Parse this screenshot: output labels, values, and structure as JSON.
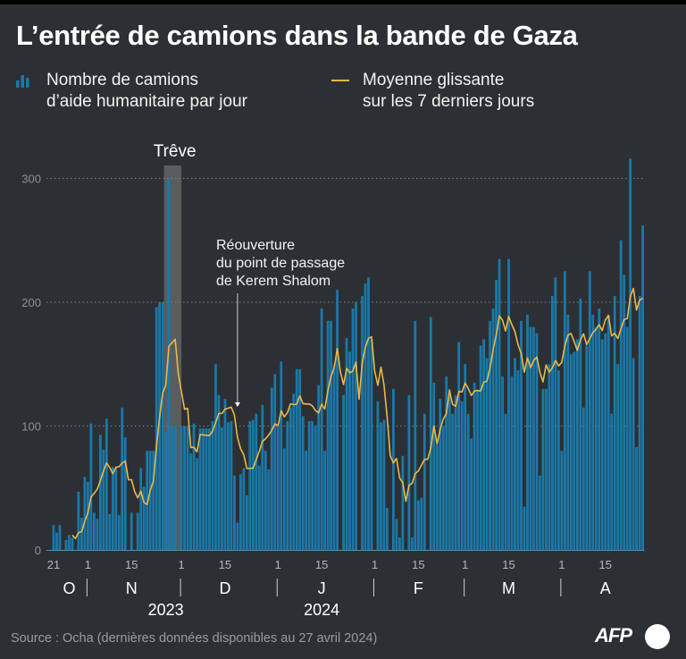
{
  "chart_data": {
    "type": "bar",
    "title": "L’entrée de camions dans la bande de Gaza",
    "start_date": "2023-10-21",
    "end_date": "2024-04-27",
    "ylim": [
      0,
      330
    ],
    "yticks": [
      0,
      100,
      200,
      300
    ],
    "grid": true,
    "legend_placement": "top",
    "series": [
      {
        "name": "Nombre de camions d’aide humanitaire par jour",
        "type": "bar",
        "color": "#1b78a8",
        "values": [
          20,
          14,
          20,
          0,
          8,
          12,
          10,
          0,
          47,
          26,
          59,
          55,
          102,
          30,
          25,
          93,
          81,
          106,
          29,
          67,
          66,
          28,
          115,
          91,
          0,
          30,
          0,
          30,
          66,
          51,
          80,
          80,
          80,
          196,
          200,
          200,
          95,
          300,
          100,
          100,
          0,
          100,
          100,
          100,
          78,
          102,
          74,
          98,
          98,
          98,
          98,
          104,
          150,
          125,
          99,
          122,
          103,
          104,
          60,
          22,
          61,
          66,
          44,
          104,
          105,
          110,
          68,
          117,
          80,
          65,
          131,
          142,
          100,
          152,
          82,
          104,
          115,
          126,
          146,
          146,
          108,
          80,
          104,
          104,
          100,
          133,
          195,
          80,
          185,
          185,
          150,
          210,
          0,
          125,
          171,
          160,
          195,
          200,
          0,
          205,
          215,
          220,
          170,
          0,
          120,
          103,
          105,
          34,
          0,
          130,
          25,
          10,
          76,
          0,
          125,
          10,
          185,
          40,
          42,
          110,
          0,
          188,
          135,
          85,
          122,
          100,
          140,
          130,
          110,
          125,
          168,
          120,
          150,
          110,
          90,
          135,
          128,
          165,
          170,
          155,
          185,
          195,
          218,
          235,
          140,
          110,
          235,
          140,
          155,
          145,
          185,
          35,
          190,
          180,
          180,
          175,
          60,
          130,
          130,
          150,
          205,
          220,
          145,
          80,
          225,
          190,
          158,
          160,
          170,
          203,
          115,
          165,
          225,
          190,
          180,
          195,
          170,
          175,
          190,
          110,
          205,
          150,
          250,
          222,
          180,
          316,
          155,
          83,
          205,
          262
        ]
      },
      {
        "name": "Moyenne glissante sur les 7 derniers jours",
        "type": "line",
        "color": "#e9b949",
        "window": 7
      }
    ],
    "x_day_ticks": [
      {
        "label": "21",
        "date": "2023-10-21"
      },
      {
        "label": "1",
        "date": "2023-11-01"
      },
      {
        "label": "15",
        "date": "2023-11-15"
      },
      {
        "label": "1",
        "date": "2023-12-01"
      },
      {
        "label": "15",
        "date": "2023-12-15"
      },
      {
        "label": "1",
        "date": "2024-01-01"
      },
      {
        "label": "15",
        "date": "2024-01-15"
      },
      {
        "label": "1",
        "date": "2024-02-01"
      },
      {
        "label": "15",
        "date": "2024-02-15"
      },
      {
        "label": "1",
        "date": "2024-03-01"
      },
      {
        "label": "15",
        "date": "2024-03-15"
      },
      {
        "label": "1",
        "date": "2024-04-01"
      },
      {
        "label": "15",
        "date": "2024-04-15"
      }
    ],
    "months": [
      {
        "label": "O",
        "mid": "2023-10-26"
      },
      {
        "label": "N",
        "mid": "2023-11-15"
      },
      {
        "label": "D",
        "mid": "2023-12-15"
      },
      {
        "label": "J",
        "mid": "2024-01-15"
      },
      {
        "label": "F",
        "mid": "2024-02-15"
      },
      {
        "label": "M",
        "mid": "2024-03-15"
      },
      {
        "label": "A",
        "mid": "2024-04-15"
      }
    ],
    "years": [
      {
        "label": "2023",
        "mid": "2023-11-26"
      },
      {
        "label": "2024",
        "mid": "2024-01-15"
      }
    ],
    "annotations": [
      {
        "label": "Trêve",
        "type": "span",
        "from": "2023-11-26",
        "to": "2023-12-01"
      },
      {
        "lines": [
          "Réouverture",
          "du point de passage",
          "de Kerem Shalom"
        ],
        "type": "arrow",
        "date": "2023-12-19"
      }
    ]
  },
  "legend": {
    "bars_line1": "Nombre de camions",
    "bars_line2": "d’aide humanitaire par jour",
    "avg_line1": "Moyenne glissante",
    "avg_line2": "sur les 7 derniers jours"
  },
  "footer": {
    "source": "Source : Ocha (dernières données disponibles au 27 avril 2024)",
    "logo": "AFP"
  }
}
